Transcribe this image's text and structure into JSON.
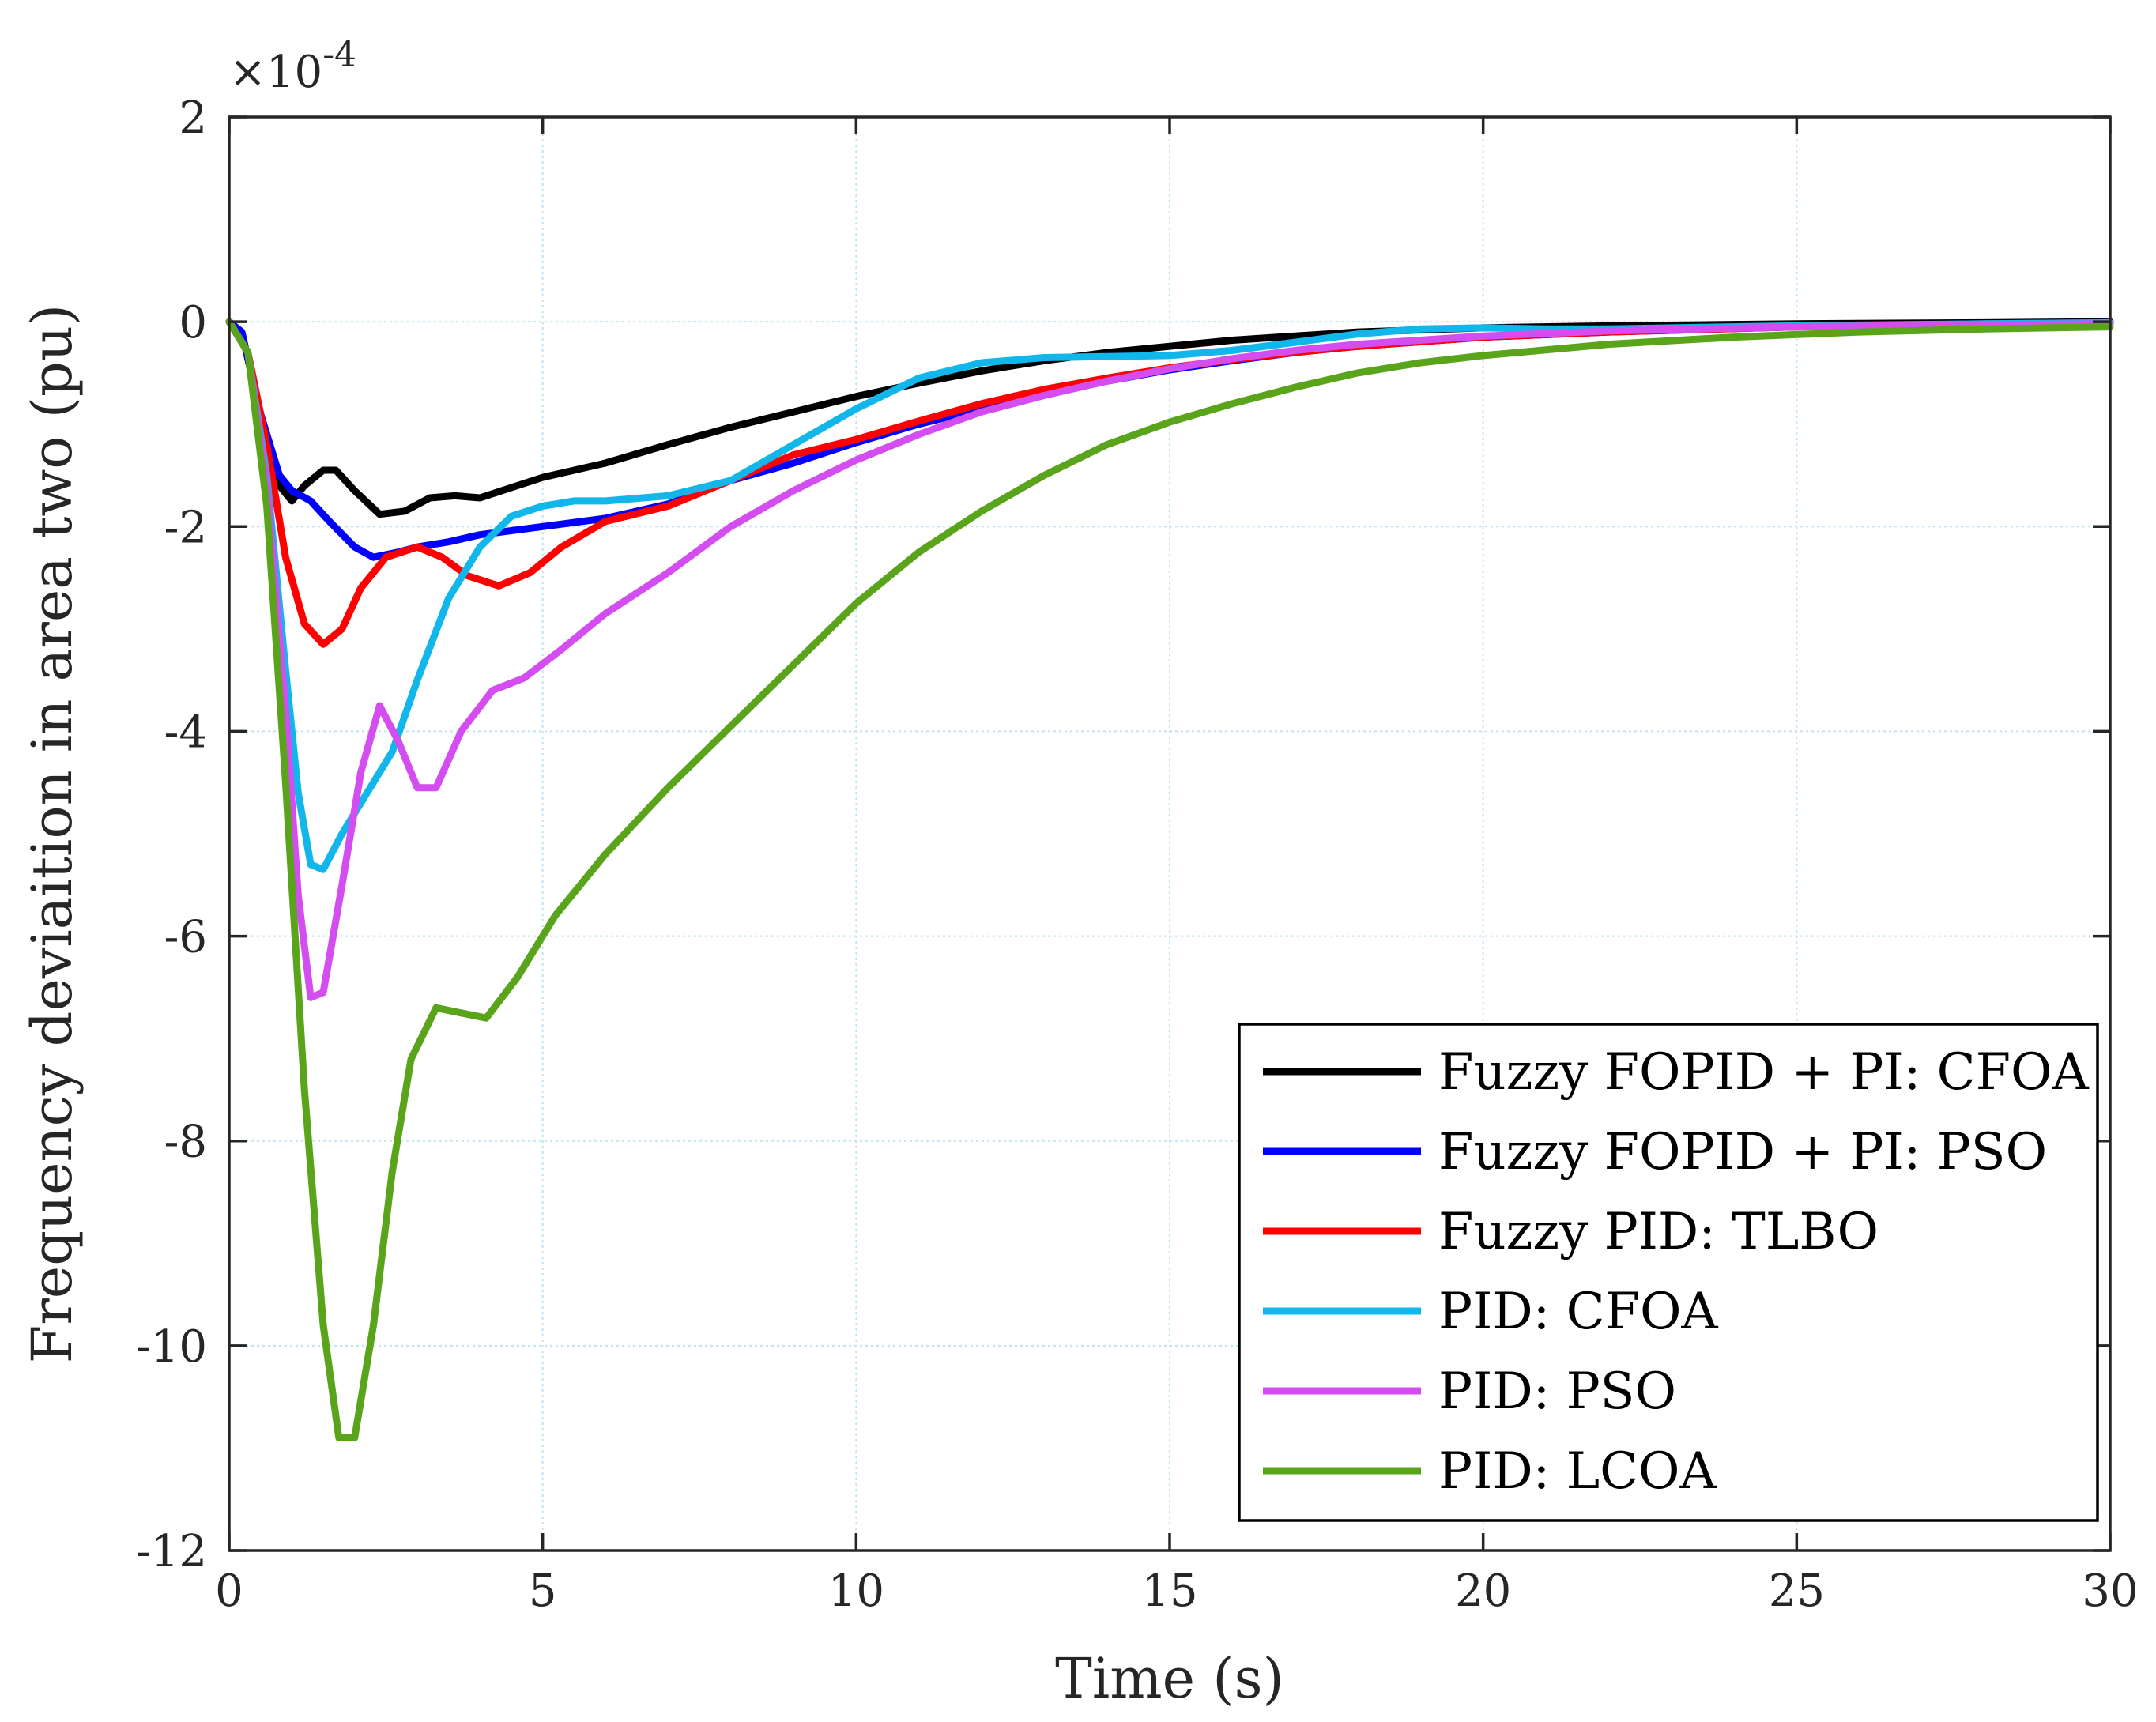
{
  "chart_data": {
    "type": "line",
    "title": "",
    "xlabel": "Time (s)",
    "ylabel": "Frequency deviaition in area two (pu)",
    "y_scale_label": "×10",
    "y_scale_exponent": "-4",
    "xlim": [
      0,
      30
    ],
    "ylim": [
      -12,
      2
    ],
    "xticks": [
      0,
      5,
      10,
      15,
      20,
      25,
      30
    ],
    "xtick_labels": [
      "0",
      "5",
      "10",
      "15",
      "20",
      "25",
      "30"
    ],
    "yticks": [
      2,
      0,
      -2,
      -4,
      -6,
      -8,
      -10,
      -12
    ],
    "ytick_labels": [
      "2",
      "0",
      "-2",
      "-4",
      "-6",
      "-8",
      "-10",
      "-12"
    ],
    "grid": true,
    "legend_position": "bottom-right",
    "series": [
      {
        "name": "Fuzzy FOPID + PI: CFOA",
        "color": "#000000",
        "points": [
          [
            0,
            0
          ],
          [
            0.2,
            -0.1
          ],
          [
            0.5,
            -0.9
          ],
          [
            0.8,
            -1.6
          ],
          [
            1.0,
            -1.75
          ],
          [
            1.2,
            -1.6
          ],
          [
            1.5,
            -1.45
          ],
          [
            1.7,
            -1.45
          ],
          [
            2.0,
            -1.65
          ],
          [
            2.4,
            -1.88
          ],
          [
            2.8,
            -1.85
          ],
          [
            3.2,
            -1.72
          ],
          [
            3.6,
            -1.7
          ],
          [
            4.0,
            -1.72
          ],
          [
            4.5,
            -1.62
          ],
          [
            5.0,
            -1.52
          ],
          [
            6.0,
            -1.38
          ],
          [
            7.0,
            -1.2
          ],
          [
            8.0,
            -1.03
          ],
          [
            9.0,
            -0.88
          ],
          [
            10.0,
            -0.73
          ],
          [
            11.0,
            -0.6
          ],
          [
            12.0,
            -0.48
          ],
          [
            13.0,
            -0.38
          ],
          [
            14.0,
            -0.3
          ],
          [
            15.0,
            -0.24
          ],
          [
            16.0,
            -0.18
          ],
          [
            17.0,
            -0.14
          ],
          [
            18.0,
            -0.1
          ],
          [
            20.0,
            -0.06
          ],
          [
            22.0,
            -0.04
          ],
          [
            25.0,
            -0.02
          ],
          [
            28.0,
            -0.01
          ],
          [
            30.0,
            0.0
          ]
        ]
      },
      {
        "name": "Fuzzy FOPID + PI: PSO",
        "color": "#0000ff",
        "points": [
          [
            0,
            0
          ],
          [
            0.2,
            -0.1
          ],
          [
            0.5,
            -0.9
          ],
          [
            0.8,
            -1.5
          ],
          [
            1.0,
            -1.65
          ],
          [
            1.3,
            -1.75
          ],
          [
            1.6,
            -1.95
          ],
          [
            2.0,
            -2.2
          ],
          [
            2.3,
            -2.3
          ],
          [
            2.7,
            -2.25
          ],
          [
            3.0,
            -2.2
          ],
          [
            3.5,
            -2.15
          ],
          [
            4.0,
            -2.08
          ],
          [
            5.0,
            -2.0
          ],
          [
            6.0,
            -1.92
          ],
          [
            7.0,
            -1.78
          ],
          [
            8.0,
            -1.55
          ],
          [
            9.0,
            -1.38
          ],
          [
            10.0,
            -1.18
          ],
          [
            11.0,
            -1.0
          ],
          [
            12.0,
            -0.85
          ],
          [
            13.0,
            -0.7
          ],
          [
            14.0,
            -0.58
          ],
          [
            15.0,
            -0.47
          ],
          [
            16.0,
            -0.38
          ],
          [
            17.0,
            -0.3
          ],
          [
            18.0,
            -0.24
          ],
          [
            20.0,
            -0.15
          ],
          [
            22.0,
            -0.1
          ],
          [
            25.0,
            -0.05
          ],
          [
            28.0,
            -0.02
          ],
          [
            30.0,
            -0.01
          ]
        ]
      },
      {
        "name": "Fuzzy PID: TLBO",
        "color": "#ff0000",
        "points": [
          [
            0,
            0
          ],
          [
            0.3,
            -0.3
          ],
          [
            0.6,
            -1.2
          ],
          [
            0.9,
            -2.3
          ],
          [
            1.2,
            -2.95
          ],
          [
            1.5,
            -3.15
          ],
          [
            1.8,
            -3.0
          ],
          [
            2.1,
            -2.6
          ],
          [
            2.5,
            -2.3
          ],
          [
            3.0,
            -2.2
          ],
          [
            3.4,
            -2.3
          ],
          [
            3.8,
            -2.48
          ],
          [
            4.3,
            -2.58
          ],
          [
            4.8,
            -2.45
          ],
          [
            5.3,
            -2.2
          ],
          [
            6.0,
            -1.95
          ],
          [
            7.0,
            -1.8
          ],
          [
            8.0,
            -1.55
          ],
          [
            9.0,
            -1.3
          ],
          [
            10.0,
            -1.15
          ],
          [
            11.0,
            -0.97
          ],
          [
            12.0,
            -0.8
          ],
          [
            13.0,
            -0.66
          ],
          [
            14.0,
            -0.55
          ],
          [
            15.0,
            -0.45
          ],
          [
            16.0,
            -0.37
          ],
          [
            17.0,
            -0.3
          ],
          [
            18.0,
            -0.24
          ],
          [
            20.0,
            -0.15
          ],
          [
            22.0,
            -0.1
          ],
          [
            25.0,
            -0.05
          ],
          [
            28.0,
            -0.02
          ],
          [
            30.0,
            -0.01
          ]
        ]
      },
      {
        "name": "PID: CFOA",
        "color": "#11b6ea",
        "points": [
          [
            0,
            0
          ],
          [
            0.3,
            -0.3
          ],
          [
            0.6,
            -1.5
          ],
          [
            0.9,
            -3.4
          ],
          [
            1.1,
            -4.6
          ],
          [
            1.3,
            -5.3
          ],
          [
            1.5,
            -5.35
          ],
          [
            1.8,
            -5.0
          ],
          [
            2.2,
            -4.6
          ],
          [
            2.6,
            -4.2
          ],
          [
            3.0,
            -3.5
          ],
          [
            3.5,
            -2.7
          ],
          [
            4.0,
            -2.2
          ],
          [
            4.5,
            -1.9
          ],
          [
            5.0,
            -1.8
          ],
          [
            5.5,
            -1.75
          ],
          [
            6.0,
            -1.75
          ],
          [
            7.0,
            -1.7
          ],
          [
            8.0,
            -1.55
          ],
          [
            9.0,
            -1.2
          ],
          [
            10.0,
            -0.85
          ],
          [
            11.0,
            -0.55
          ],
          [
            12.0,
            -0.4
          ],
          [
            13.0,
            -0.35
          ],
          [
            14.0,
            -0.34
          ],
          [
            15.0,
            -0.33
          ],
          [
            16.0,
            -0.28
          ],
          [
            17.0,
            -0.2
          ],
          [
            18.0,
            -0.12
          ],
          [
            19.0,
            -0.07
          ],
          [
            20.0,
            -0.06
          ],
          [
            21.0,
            -0.07
          ],
          [
            22.0,
            -0.07
          ],
          [
            25.0,
            -0.04
          ],
          [
            28.0,
            -0.02
          ],
          [
            30.0,
            -0.01
          ]
        ]
      },
      {
        "name": "PID: PSO",
        "color": "#d44df0",
        "points": [
          [
            0,
            0
          ],
          [
            0.3,
            -0.3
          ],
          [
            0.6,
            -1.6
          ],
          [
            0.9,
            -3.8
          ],
          [
            1.1,
            -5.6
          ],
          [
            1.3,
            -6.6
          ],
          [
            1.5,
            -6.55
          ],
          [
            1.8,
            -5.5
          ],
          [
            2.1,
            -4.4
          ],
          [
            2.4,
            -3.75
          ],
          [
            2.7,
            -4.1
          ],
          [
            3.0,
            -4.55
          ],
          [
            3.3,
            -4.55
          ],
          [
            3.7,
            -4.0
          ],
          [
            4.2,
            -3.6
          ],
          [
            4.7,
            -3.48
          ],
          [
            5.3,
            -3.2
          ],
          [
            6.0,
            -2.85
          ],
          [
            7.0,
            -2.45
          ],
          [
            8.0,
            -2.0
          ],
          [
            9.0,
            -1.65
          ],
          [
            10.0,
            -1.35
          ],
          [
            11.0,
            -1.1
          ],
          [
            12.0,
            -0.88
          ],
          [
            13.0,
            -0.72
          ],
          [
            14.0,
            -0.58
          ],
          [
            15.0,
            -0.46
          ],
          [
            16.0,
            -0.36
          ],
          [
            17.0,
            -0.28
          ],
          [
            18.0,
            -0.22
          ],
          [
            20.0,
            -0.14
          ],
          [
            22.0,
            -0.09
          ],
          [
            25.0,
            -0.05
          ],
          [
            28.0,
            -0.03
          ],
          [
            30.0,
            -0.02
          ]
        ]
      },
      {
        "name": "PID: LCOA",
        "color": "#5aa41c",
        "points": [
          [
            0,
            0
          ],
          [
            0.3,
            -0.3
          ],
          [
            0.6,
            -1.8
          ],
          [
            0.9,
            -4.5
          ],
          [
            1.2,
            -7.5
          ],
          [
            1.5,
            -9.8
          ],
          [
            1.75,
            -10.9
          ],
          [
            2.0,
            -10.9
          ],
          [
            2.3,
            -9.8
          ],
          [
            2.6,
            -8.3
          ],
          [
            2.9,
            -7.2
          ],
          [
            3.3,
            -6.7
          ],
          [
            3.7,
            -6.75
          ],
          [
            4.1,
            -6.8
          ],
          [
            4.6,
            -6.4
          ],
          [
            5.2,
            -5.8
          ],
          [
            6.0,
            -5.2
          ],
          [
            7.0,
            -4.55
          ],
          [
            8.0,
            -3.95
          ],
          [
            9.0,
            -3.35
          ],
          [
            10.0,
            -2.75
          ],
          [
            11.0,
            -2.25
          ],
          [
            12.0,
            -1.85
          ],
          [
            13.0,
            -1.5
          ],
          [
            14.0,
            -1.2
          ],
          [
            15.0,
            -0.98
          ],
          [
            16.0,
            -0.8
          ],
          [
            17.0,
            -0.64
          ],
          [
            18.0,
            -0.5
          ],
          [
            19.0,
            -0.4
          ],
          [
            20.0,
            -0.33
          ],
          [
            22.0,
            -0.22
          ],
          [
            24.0,
            -0.15
          ],
          [
            26.0,
            -0.1
          ],
          [
            28.0,
            -0.07
          ],
          [
            30.0,
            -0.05
          ]
        ]
      }
    ]
  }
}
